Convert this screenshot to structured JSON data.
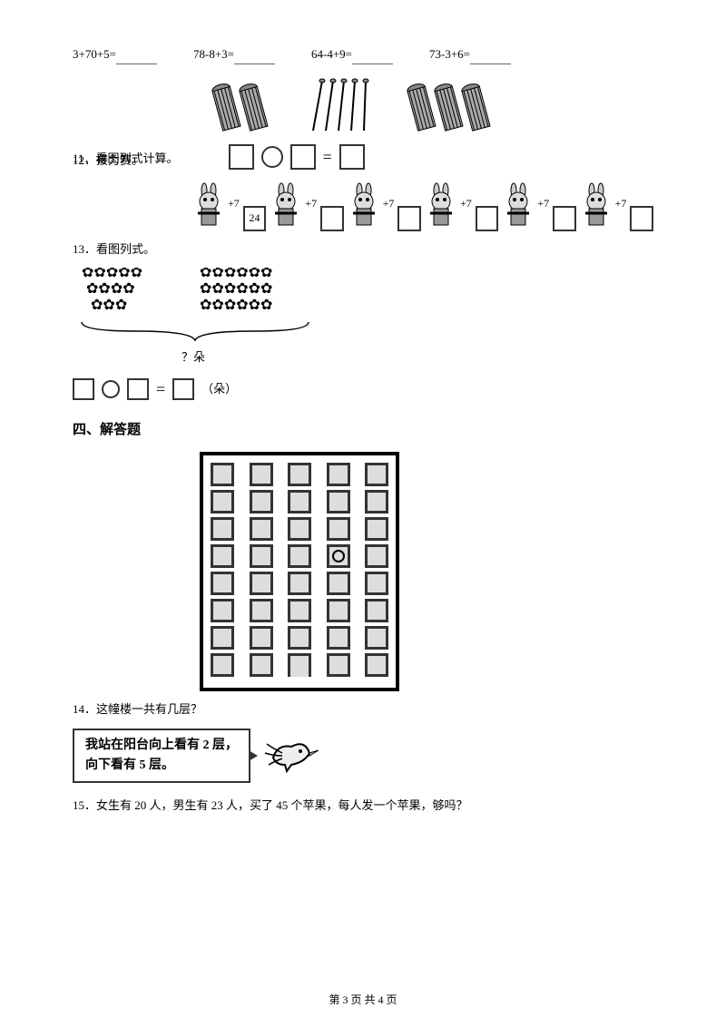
{
  "equations": [
    {
      "expr": "3+70+5="
    },
    {
      "expr": "78-8+3="
    },
    {
      "expr": "64-4+9="
    },
    {
      "expr": "73-3+6="
    }
  ],
  "q11": {
    "num": "11",
    "punct": "．",
    "text": "看图列式计算。"
  },
  "q12": {
    "num": "12",
    "punct": "．",
    "text": "接力赛。"
  },
  "q13": {
    "num": "13",
    "punct": "．",
    "text": "看图列式。"
  },
  "section4": "四、解答题",
  "q14": {
    "num": "14",
    "punct": "．",
    "text": "这幢楼一共有几层？"
  },
  "q15": {
    "num": "15",
    "punct": "．",
    "text": "女生有 20 人，男生有 23 人，买了 45 个苹果，每人发一个苹果，够吗？"
  },
  "relay": {
    "plus": "+7",
    "start_value": "24",
    "count": 6
  },
  "flowers": {
    "brace_label": "？朵",
    "unit_suffix": "（朵）"
  },
  "building": {
    "rows": 8,
    "cols": 5,
    "marked_row": 3,
    "marked_col": 3
  },
  "speech": {
    "line1": "我站在阳台向上看有 2 层，",
    "line2": "向下看有 5 层。"
  },
  "footer": {
    "prefix": "第 ",
    "current": "3",
    "mid": " 页 共 ",
    "total": "4",
    "suffix": " 页"
  },
  "colors": {
    "border": "#333333",
    "text": "#000000",
    "window_fill": "#dddddd"
  }
}
